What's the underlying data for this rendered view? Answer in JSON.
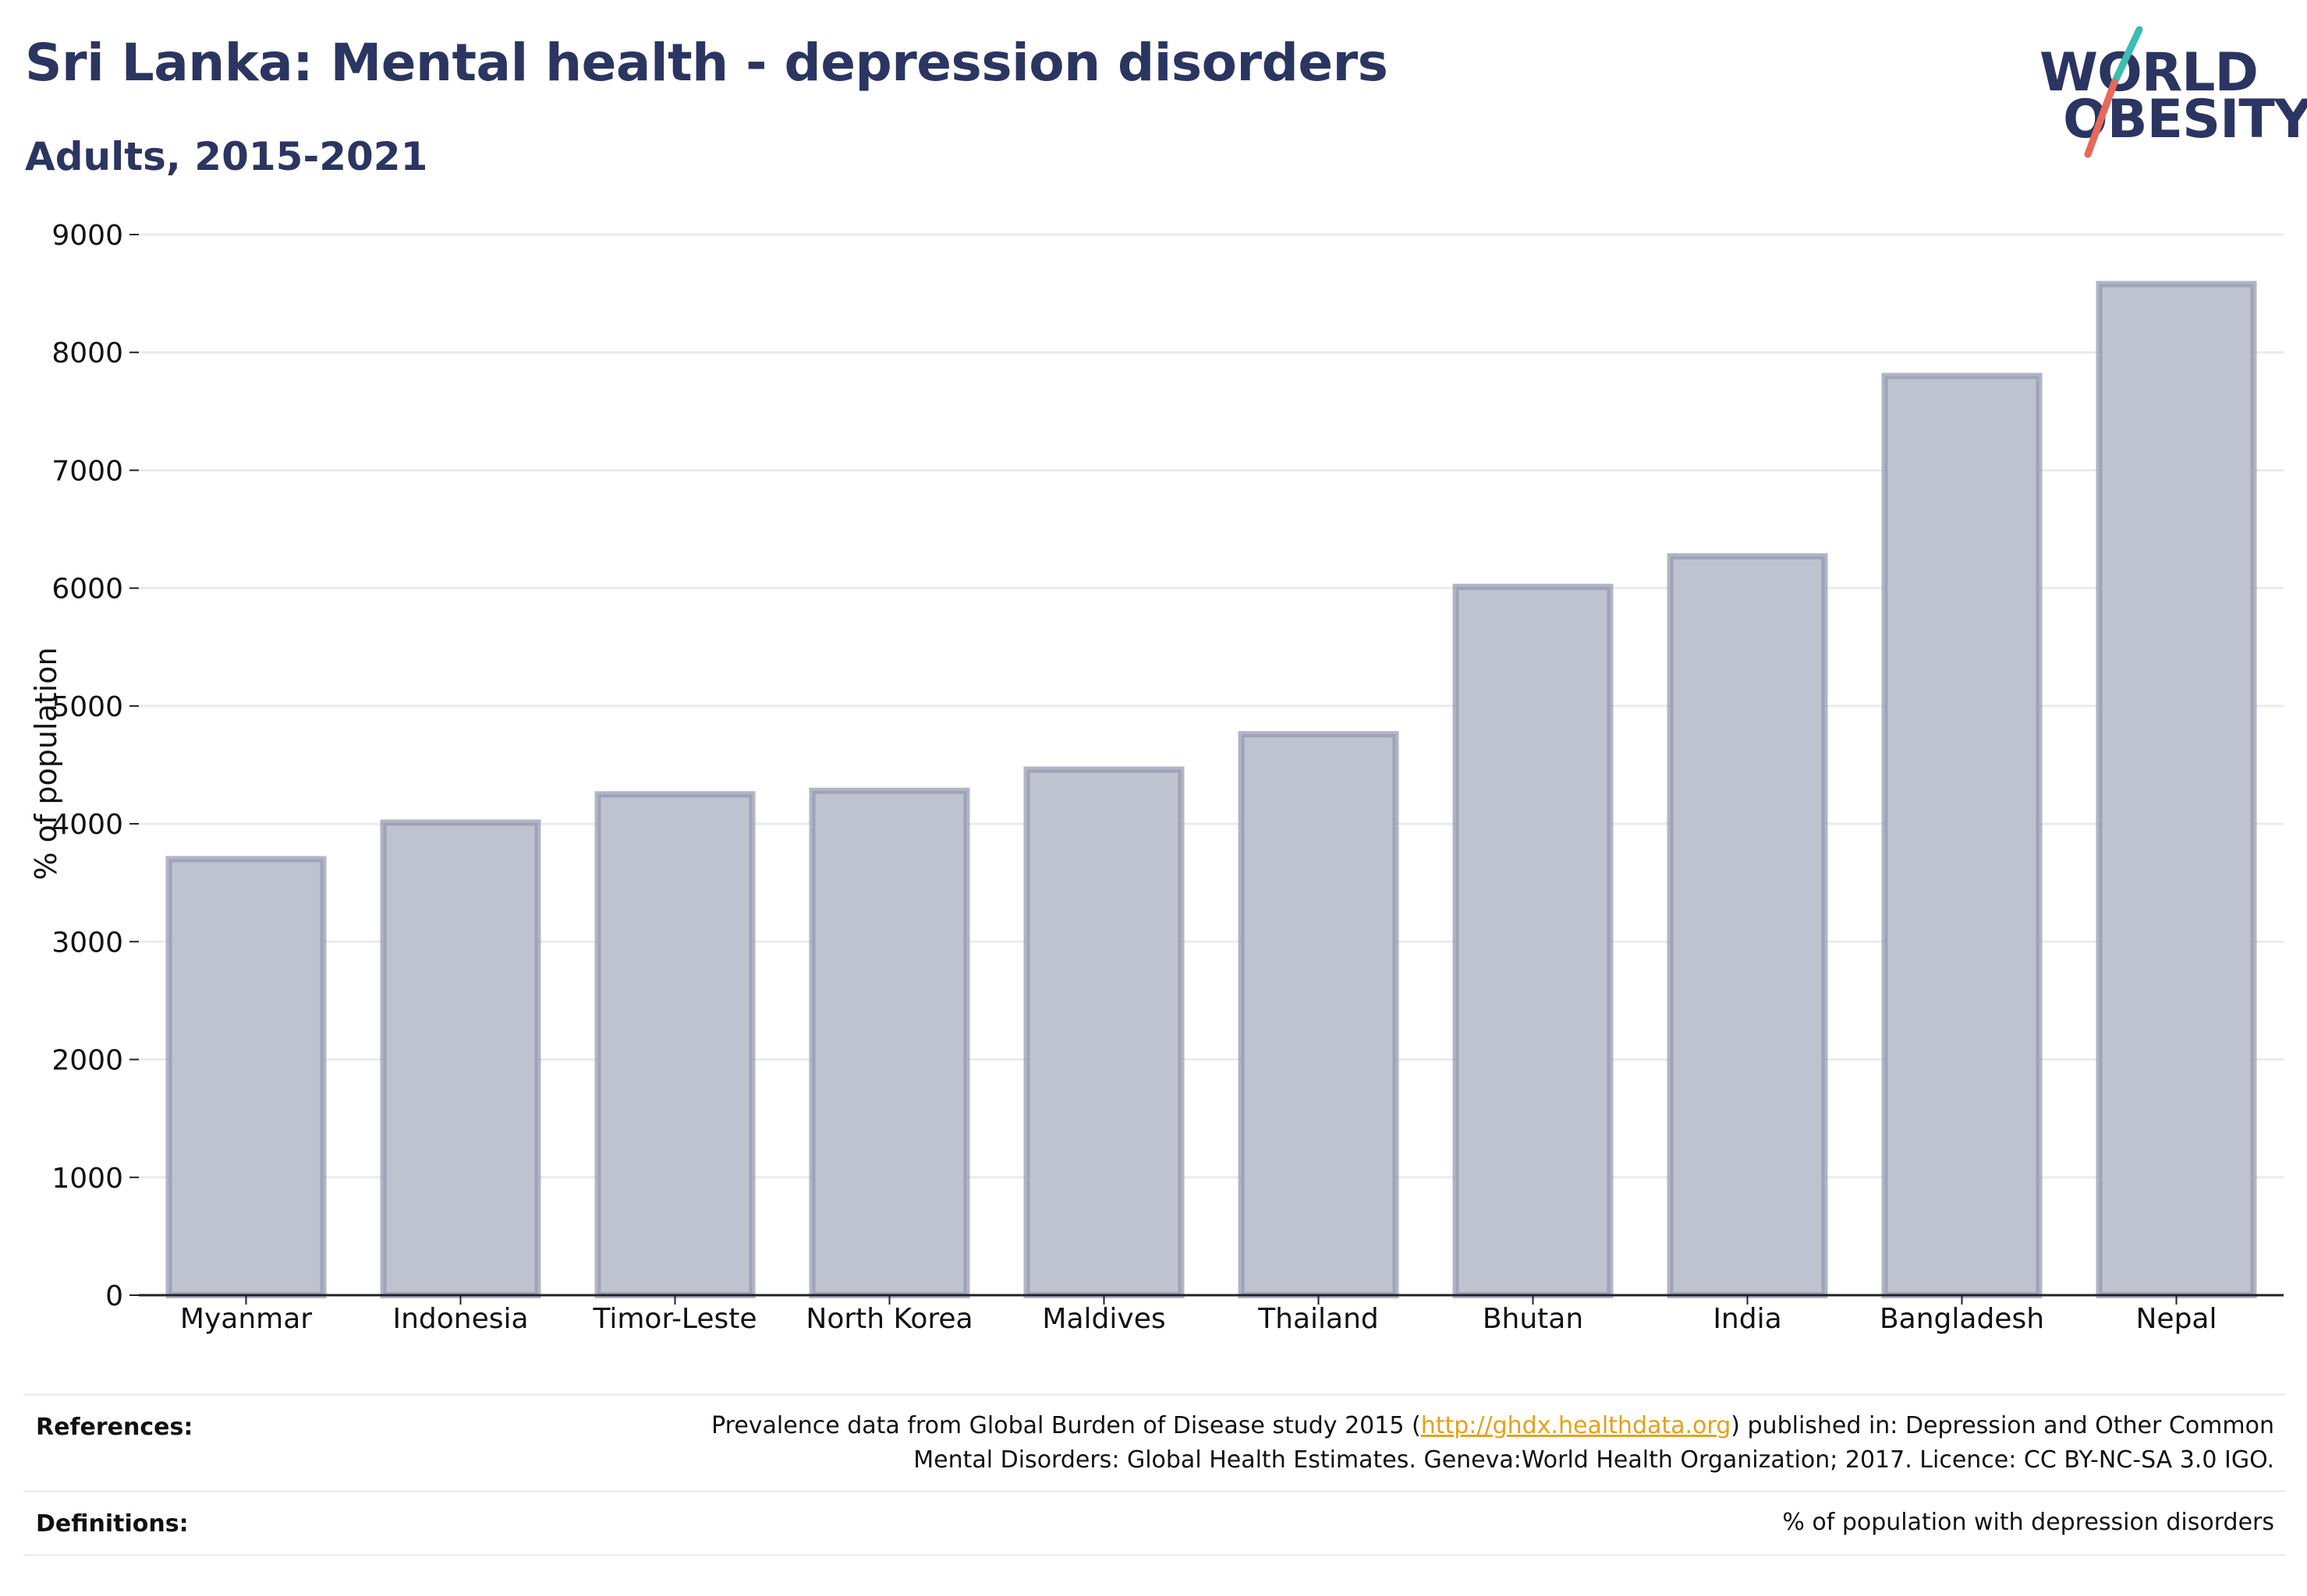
{
  "header": {
    "title": "Sri Lanka: Mental health - depression disorders",
    "subtitle": "Adults, 2015-2021"
  },
  "logo": {
    "line1": "WORLD",
    "line2": "OBESITY",
    "line1_rest": "RLD",
    "line2_rest": "BESITY",
    "line1_lead": "W",
    "colors": {
      "text": "#2b3561",
      "slash_top": "#3bbcb4",
      "slash_bottom": "#e8685a"
    }
  },
  "chart_data": {
    "type": "bar",
    "title": "",
    "ylabel": "% of population",
    "xlabel": "",
    "categories": [
      "Myanmar",
      "Indonesia",
      "Timor-Leste",
      "North Korea",
      "Maldives",
      "Thailand",
      "Bhutan",
      "India",
      "Bangladesh",
      "Nepal"
    ],
    "values": [
      3700,
      4010,
      4250,
      4280,
      4460,
      4760,
      6010,
      6270,
      7800,
      8580
    ],
    "ylim": [
      0,
      9000
    ],
    "yticks": [
      0,
      1000,
      2000,
      3000,
      4000,
      5000,
      6000,
      7000,
      8000,
      9000
    ],
    "grid": true,
    "bar_fill": "#bfc3d0",
    "bar_stroke": "#9096ae",
    "axis_color": "#222222",
    "grid_color": "#ebebef"
  },
  "footer": {
    "references_label": "References:",
    "references_line1_pre": "Prevalence data from Global Burden of Disease study 2015 (",
    "references_link": "http://ghdx.healthdata.org",
    "references_line1_post": ") published in: Depression and Other Common",
    "references_line2": "Mental Disorders: Global Health Estimates. Geneva:World Health Organization; 2017. Licence: CC BY-NC-SA 3.0 IGO.",
    "definitions_label": "Definitions:",
    "definitions_text": "% of population with depression disorders"
  }
}
